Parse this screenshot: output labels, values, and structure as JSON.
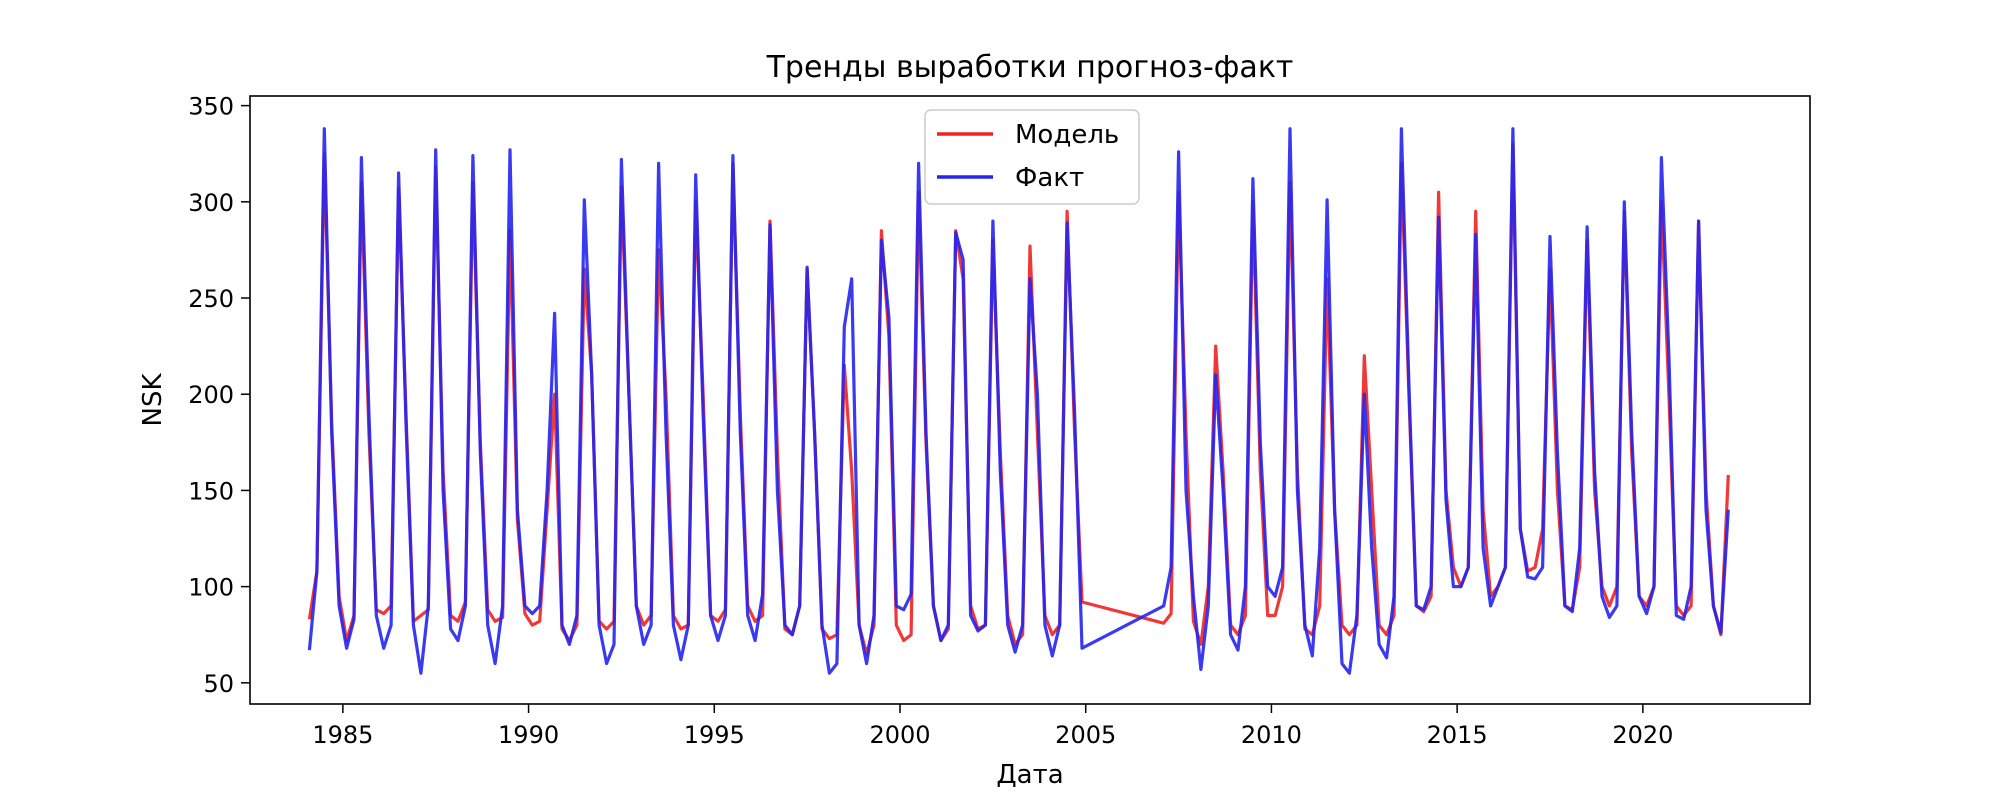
{
  "chart_data": {
    "type": "line",
    "title": "Тренды выработки прогноз-факт",
    "xlabel": "Дата",
    "ylabel": "NSK",
    "xlim": [
      1982.5,
      2024.5
    ],
    "ylim": [
      39,
      355
    ],
    "x_ticks": [
      1985,
      1990,
      1995,
      2000,
      2005,
      2010,
      2015,
      2020
    ],
    "y_ticks": [
      50,
      100,
      150,
      200,
      250,
      300,
      350
    ],
    "grid": false,
    "legend_position": "top-center",
    "series": [
      {
        "name": "Модель",
        "color": "#f02222",
        "x": [
          1984.1,
          1984.3,
          1984.5,
          1984.7,
          1984.9,
          1985.1,
          1985.3,
          1985.5,
          1985.7,
          1985.9,
          1986.1,
          1986.3,
          1986.5,
          1986.7,
          1986.9,
          1987.1,
          1987.3,
          1987.5,
          1987.7,
          1987.9,
          1988.1,
          1988.3,
          1988.5,
          1988.7,
          1988.9,
          1989.1,
          1989.3,
          1989.5,
          1989.7,
          1989.9,
          1990.1,
          1990.3,
          1990.5,
          1990.7,
          1990.9,
          1991.1,
          1991.3,
          1991.5,
          1991.7,
          1991.9,
          1992.1,
          1992.3,
          1992.5,
          1992.7,
          1992.9,
          1993.1,
          1993.3,
          1993.5,
          1993.7,
          1993.9,
          1994.1,
          1994.3,
          1994.5,
          1994.7,
          1994.9,
          1995.1,
          1995.3,
          1995.5,
          1995.7,
          1995.9,
          1996.1,
          1996.3,
          1996.5,
          1996.7,
          1996.9,
          1997.1,
          1997.3,
          1997.5,
          1997.7,
          1997.9,
          1998.1,
          1998.3,
          1998.5,
          1998.7,
          1998.9,
          1999.1,
          1999.3,
          1999.5,
          1999.7,
          1999.9,
          2000.1,
          2000.3,
          2000.5,
          2000.7,
          2000.9,
          2001.1,
          2001.3,
          2001.5,
          2001.7,
          2001.9,
          2002.1,
          2002.3,
          2002.5,
          2002.7,
          2002.9,
          2003.1,
          2003.3,
          2003.5,
          2003.7,
          2003.9,
          2004.1,
          2004.3,
          2004.5,
          2004.7,
          2004.9,
          2007.1,
          2007.3,
          2007.5,
          2007.7,
          2007.9,
          2008.1,
          2008.3,
          2008.5,
          2008.7,
          2008.9,
          2009.1,
          2009.3,
          2009.5,
          2009.7,
          2009.9,
          2010.1,
          2010.3,
          2010.5,
          2010.7,
          2010.9,
          2011.1,
          2011.3,
          2011.5,
          2011.7,
          2011.9,
          2012.1,
          2012.3,
          2012.5,
          2012.7,
          2012.9,
          2013.1,
          2013.3,
          2013.5,
          2013.7,
          2013.9,
          2014.1,
          2014.3,
          2014.5,
          2014.7,
          2014.9,
          2015.1,
          2015.3,
          2015.5,
          2015.7,
          2015.9,
          2016.1,
          2016.3,
          2016.5,
          2016.7,
          2016.9,
          2017.1,
          2017.3,
          2017.5,
          2017.7,
          2017.9,
          2018.1,
          2018.3,
          2018.5,
          2018.7,
          2018.9,
          2019.1,
          2019.3,
          2019.5,
          2019.7,
          2019.9,
          2020.1,
          2020.3,
          2020.5,
          2020.7,
          2020.9,
          2021.1,
          2021.3,
          2021.5,
          2021.7,
          2021.9,
          2022.1,
          2022.3
        ],
        "y": [
          83,
          108,
          325,
          185,
          95,
          72,
          85,
          310,
          180,
          88,
          86,
          90,
          307,
          190,
          82,
          85,
          88,
          318,
          160,
          85,
          82,
          92,
          310,
          175,
          88,
          82,
          84,
          285,
          135,
          86,
          80,
          82,
          140,
          200,
          78,
          72,
          80,
          265,
          210,
          82,
          78,
          82,
          308,
          200,
          90,
          80,
          85,
          275,
          200,
          85,
          78,
          80,
          300,
          200,
          85,
          82,
          88,
          320,
          190,
          90,
          82,
          85,
          290,
          170,
          78,
          75,
          90,
          265,
          180,
          78,
          73,
          75,
          215,
          160,
          80,
          65,
          80,
          285,
          230,
          80,
          72,
          75,
          305,
          175,
          90,
          72,
          78,
          285,
          260,
          90,
          78,
          80,
          280,
          170,
          85,
          70,
          75,
          277,
          180,
          85,
          75,
          80,
          295,
          180,
          92,
          81,
          86,
          305,
          180,
          82,
          70,
          100,
          225,
          160,
          80,
          75,
          85,
          300,
          160,
          85,
          85,
          100,
          310,
          160,
          78,
          75,
          90,
          260,
          140,
          80,
          75,
          80,
          220,
          150,
          80,
          75,
          85,
          320,
          200,
          90,
          87,
          95,
          305,
          150,
          110,
          100,
          110,
          295,
          140,
          95,
          100,
          110,
          330,
          130,
          108,
          110,
          130,
          265,
          150,
          90,
          88,
          110,
          280,
          150,
          100,
          90,
          100,
          295,
          170,
          95,
          90,
          100,
          300,
          200,
          90,
          85,
          90,
          290,
          150,
          90,
          75,
          158
        ]
      },
      {
        "name": "Факт",
        "color": "#2525f0",
        "x": [
          1984.1,
          1984.3,
          1984.5,
          1984.7,
          1984.9,
          1985.1,
          1985.3,
          1985.5,
          1985.7,
          1985.9,
          1986.1,
          1986.3,
          1986.5,
          1986.7,
          1986.9,
          1987.1,
          1987.3,
          1987.5,
          1987.7,
          1987.9,
          1988.1,
          1988.3,
          1988.5,
          1988.7,
          1988.9,
          1989.1,
          1989.3,
          1989.5,
          1989.7,
          1989.9,
          1990.1,
          1990.3,
          1990.5,
          1990.7,
          1990.9,
          1991.1,
          1991.3,
          1991.5,
          1991.7,
          1991.9,
          1992.1,
          1992.3,
          1992.5,
          1992.7,
          1992.9,
          1993.1,
          1993.3,
          1993.5,
          1993.7,
          1993.9,
          1994.1,
          1994.3,
          1994.5,
          1994.7,
          1994.9,
          1995.1,
          1995.3,
          1995.5,
          1995.7,
          1995.9,
          1996.1,
          1996.3,
          1996.5,
          1996.7,
          1996.9,
          1997.1,
          1997.3,
          1997.5,
          1997.7,
          1997.9,
          1998.1,
          1998.3,
          1998.5,
          1998.7,
          1998.9,
          1999.1,
          1999.3,
          1999.5,
          1999.7,
          1999.9,
          2000.1,
          2000.3,
          2000.5,
          2000.7,
          2000.9,
          2001.1,
          2001.3,
          2001.5,
          2001.7,
          2001.9,
          2002.1,
          2002.3,
          2002.5,
          2002.7,
          2002.9,
          2003.1,
          2003.3,
          2003.5,
          2003.7,
          2003.9,
          2004.1,
          2004.3,
          2004.5,
          2004.7,
          2004.9,
          2007.1,
          2007.3,
          2007.5,
          2007.7,
          2007.9,
          2008.1,
          2008.3,
          2008.5,
          2008.7,
          2008.9,
          2009.1,
          2009.3,
          2009.5,
          2009.7,
          2009.9,
          2010.1,
          2010.3,
          2010.5,
          2010.7,
          2010.9,
          2011.1,
          2011.3,
          2011.5,
          2011.7,
          2011.9,
          2012.1,
          2012.3,
          2012.5,
          2012.7,
          2012.9,
          2013.1,
          2013.3,
          2013.5,
          2013.7,
          2013.9,
          2014.1,
          2014.3,
          2014.5,
          2014.7,
          2014.9,
          2015.1,
          2015.3,
          2015.5,
          2015.7,
          2015.9,
          2016.1,
          2016.3,
          2016.5,
          2016.7,
          2016.9,
          2017.1,
          2017.3,
          2017.5,
          2017.7,
          2017.9,
          2018.1,
          2018.3,
          2018.5,
          2018.7,
          2018.9,
          2019.1,
          2019.3,
          2019.5,
          2019.7,
          2019.9,
          2020.1,
          2020.3,
          2020.5,
          2020.7,
          2020.9,
          2021.1,
          2021.3,
          2021.5,
          2021.7,
          2021.9,
          2022.1,
          2022.3
        ],
        "y": [
          67,
          108,
          338,
          180,
          90,
          68,
          83,
          323,
          190,
          85,
          68,
          80,
          315,
          185,
          80,
          55,
          90,
          327,
          150,
          78,
          72,
          90,
          324,
          170,
          80,
          60,
          90,
          327,
          140,
          90,
          86,
          90,
          150,
          242,
          80,
          70,
          85,
          301,
          210,
          80,
          60,
          70,
          322,
          200,
          90,
          70,
          80,
          320,
          180,
          80,
          62,
          80,
          314,
          190,
          85,
          72,
          85,
          324,
          180,
          85,
          72,
          96,
          288,
          150,
          80,
          75,
          90,
          266,
          180,
          80,
          55,
          60,
          235,
          260,
          80,
          60,
          85,
          280,
          240,
          90,
          88,
          96,
          320,
          180,
          90,
          72,
          80,
          284,
          270,
          85,
          77,
          80,
          290,
          160,
          80,
          66,
          80,
          260,
          200,
          80,
          64,
          80,
          289,
          190,
          68,
          90,
          110,
          326,
          150,
          95,
          57,
          90,
          210,
          150,
          75,
          67,
          100,
          312,
          175,
          100,
          95,
          110,
          338,
          150,
          80,
          64,
          120,
          301,
          140,
          60,
          55,
          85,
          200,
          120,
          70,
          63,
          95,
          338,
          205,
          90,
          88,
          100,
          292,
          145,
          100,
          100,
          110,
          283,
          120,
          90,
          100,
          110,
          338,
          130,
          105,
          104,
          110,
          282,
          170,
          90,
          87,
          120,
          287,
          160,
          95,
          84,
          90,
          300,
          180,
          95,
          86,
          100,
          323,
          220,
          85,
          83,
          100,
          290,
          140,
          90,
          76,
          140
        ]
      }
    ]
  }
}
